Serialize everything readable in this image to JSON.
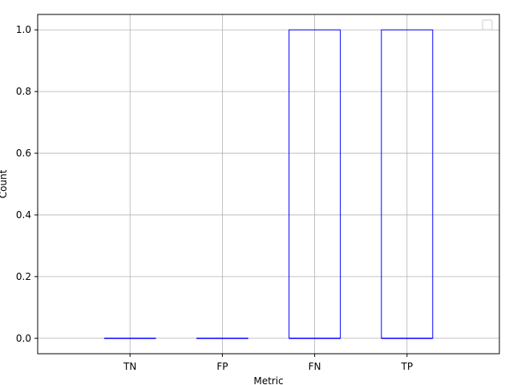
{
  "chart_data": {
    "type": "box",
    "categories": [
      "TN",
      "FP",
      "FN",
      "TP"
    ],
    "boxes": [
      {
        "category": "TN",
        "min": 0,
        "q1": 0,
        "median": 0,
        "q3": 0,
        "max": 0
      },
      {
        "category": "FP",
        "min": 0,
        "q1": 0,
        "median": 0,
        "q3": 0,
        "max": 0
      },
      {
        "category": "FN",
        "min": 0,
        "q1": 0,
        "median": 0,
        "q3": 1,
        "max": 1
      },
      {
        "category": "TP",
        "min": 0,
        "q1": 0,
        "median": 0,
        "q3": 1,
        "max": 1
      }
    ],
    "xlabel": "Metric",
    "ylabel": "Count",
    "ylim": [
      -0.05,
      1.05
    ],
    "yticks": [
      0.0,
      0.2,
      0.4,
      0.6,
      0.8,
      1.0
    ],
    "ytick_labels": [
      "0.0",
      "0.2",
      "0.4",
      "0.6",
      "0.8",
      "1.0"
    ],
    "grid": true,
    "legend": {
      "placement": "upper right",
      "entries": []
    },
    "colors": {
      "box": "#0000ff",
      "grid": "#b0b0b0",
      "axes": "#000000"
    }
  }
}
